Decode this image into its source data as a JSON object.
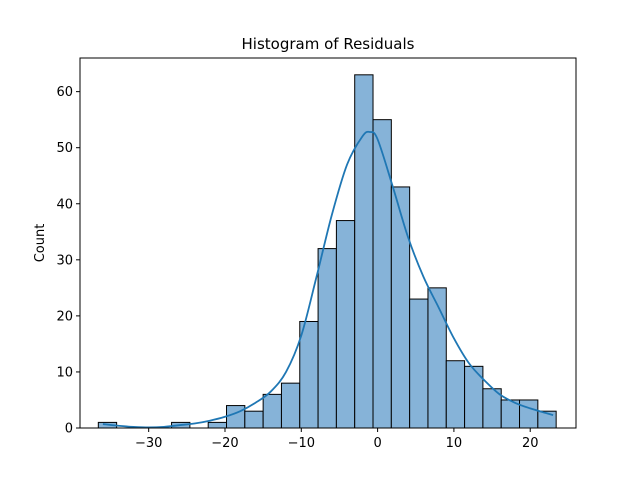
{
  "chart_data": {
    "type": "bar",
    "title": "Histogram of Residuals",
    "xlabel": "",
    "ylabel": "Count",
    "xlim": [
      -39.0,
      26.0
    ],
    "ylim": [
      0,
      66
    ],
    "xticks": [
      -30,
      -20,
      -10,
      0,
      10,
      20
    ],
    "yticks": [
      0,
      10,
      20,
      30,
      40,
      50,
      60
    ],
    "xtick_labels": [
      "−30",
      "−20",
      "−10",
      "0",
      "10",
      "20"
    ],
    "ytick_labels": [
      "0",
      "10",
      "20",
      "30",
      "40",
      "50",
      "60"
    ],
    "grid": false,
    "legend": "none",
    "bin_start": -36.6,
    "bin_width": 2.4,
    "counts": [
      1,
      0,
      0,
      0,
      1,
      0,
      1,
      4,
      3,
      6,
      8,
      19,
      32,
      37,
      63,
      55,
      43,
      23,
      25,
      12,
      11,
      7,
      5,
      5,
      3
    ],
    "kde": {
      "x": [
        -36,
        -34,
        -32,
        -30,
        -28,
        -26,
        -24,
        -22,
        -20,
        -18,
        -16,
        -14,
        -12,
        -10,
        -8,
        -6,
        -4,
        -2,
        -1,
        0,
        2,
        4,
        6,
        8,
        10,
        12,
        14,
        16,
        18,
        20,
        22,
        23
      ],
      "y": [
        0.7,
        0.4,
        0.2,
        0.1,
        0.2,
        0.5,
        0.8,
        1.3,
        2.0,
        3.0,
        4.5,
        6.5,
        10.0,
        16.5,
        27.0,
        38.0,
        47.0,
        52.0,
        52.8,
        51.5,
        43.0,
        34.0,
        27.0,
        21.5,
        16.0,
        11.5,
        8.5,
        6.0,
        4.5,
        3.5,
        2.7,
        2.3
      ]
    },
    "colors": {
      "bar_fill": "#86b3d8",
      "bar_edge": "#000000",
      "kde_line": "#1f77b4",
      "axes": "#000000"
    }
  }
}
